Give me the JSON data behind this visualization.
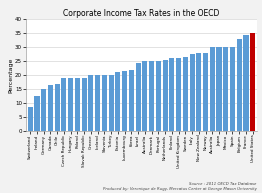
{
  "title": "Corporate Income Tax Rates in the OECD",
  "ylabel": "Percentage",
  "source_line1": "Source : 2011 OECD Tax Database",
  "source_line2": "Produced by: Veronique de Rugy, Mercatus Center at George Mason University",
  "ylim": [
    0,
    40
  ],
  "yticks": [
    0,
    5,
    10,
    15,
    20,
    25,
    30,
    35,
    40
  ],
  "countries": [
    "Switzerland",
    "Ireland",
    "Germany",
    "Canada",
    "Chile",
    "Czech Republic",
    "Hungary",
    "Poland",
    "Slovak Republic",
    "Greece",
    "Iceland",
    "Slovenia",
    "Turkey",
    "Estonia",
    "Luxembourg",
    "Korea",
    "Israel",
    "Australia",
    "Denmark",
    "Portugal",
    "Netherlands",
    "Finland",
    "United Kingdom",
    "Sweden",
    "Italy",
    "New Zealand",
    "Norway",
    "Australia",
    "Japan",
    "Mexico",
    "Spain",
    "Belgium",
    "France",
    "United States"
  ],
  "values": [
    8.5,
    12.5,
    15.0,
    16.5,
    17.0,
    19.0,
    19.0,
    19.0,
    19.0,
    20.0,
    20.0,
    20.0,
    20.0,
    21.0,
    21.5,
    22.0,
    24.5,
    25.0,
    25.0,
    25.0,
    25.5,
    26.0,
    26.0,
    26.5,
    27.5,
    28.0,
    28.0,
    30.0,
    30.0,
    30.0,
    30.0,
    33.0,
    34.5,
    35.0
  ],
  "bar_color_blue": "#5B9BD5",
  "bar_color_red": "#C00000",
  "background_color": "#F2F2F2",
  "plot_bg_color": "#FFFFFF",
  "title_fontsize": 5.5,
  "ylabel_fontsize": 4.5,
  "tick_fontsize": 4.0,
  "xtick_fontsize": 3.0,
  "source_fontsize": 2.8
}
